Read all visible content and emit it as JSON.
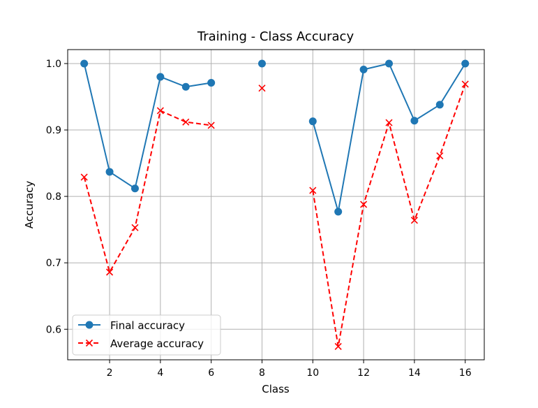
{
  "chart_data": {
    "type": "line",
    "title": "Training - Class Accuracy",
    "xlabel": "Class",
    "ylabel": "Accuracy",
    "xlim": [
      0.35,
      16.75
    ],
    "ylim": [
      0.554,
      1.021
    ],
    "xticks": [
      2,
      4,
      6,
      8,
      10,
      12,
      14,
      16
    ],
    "yticks": [
      0.6,
      0.7,
      0.8,
      0.9,
      1.0
    ],
    "xtick_labels": [
      "2",
      "4",
      "6",
      "8",
      "10",
      "12",
      "14",
      "16"
    ],
    "ytick_labels": [
      "0.6",
      "0.7",
      "0.8",
      "0.9",
      "1.0"
    ],
    "grid": true,
    "legend_position": "lower left",
    "series": [
      {
        "name": "Final accuracy",
        "color": "#1f77b4",
        "line_style": "solid",
        "marker": "circle",
        "x": [
          1,
          2,
          3,
          4,
          5,
          6,
          8,
          10,
          11,
          12,
          13,
          14,
          15,
          16
        ],
        "y": [
          1.0,
          0.837,
          0.812,
          0.98,
          0.965,
          0.971,
          1.0,
          0.913,
          0.777,
          0.991,
          1.0,
          0.914,
          0.938,
          1.0
        ],
        "segments": [
          [
            0,
            5
          ],
          [
            6,
            6
          ],
          [
            7,
            13
          ]
        ]
      },
      {
        "name": "Average accuracy",
        "color": "#ff0000",
        "line_style": "dashed",
        "marker": "x",
        "x": [
          1,
          2,
          3,
          4,
          5,
          6,
          8,
          10,
          11,
          12,
          13,
          14,
          15,
          16
        ],
        "y": [
          0.829,
          0.686,
          0.753,
          0.929,
          0.912,
          0.907,
          0.963,
          0.809,
          0.574,
          0.788,
          0.911,
          0.764,
          0.861,
          0.969
        ],
        "segments": [
          [
            0,
            5
          ],
          [
            6,
            6
          ],
          [
            7,
            13
          ]
        ]
      }
    ]
  }
}
